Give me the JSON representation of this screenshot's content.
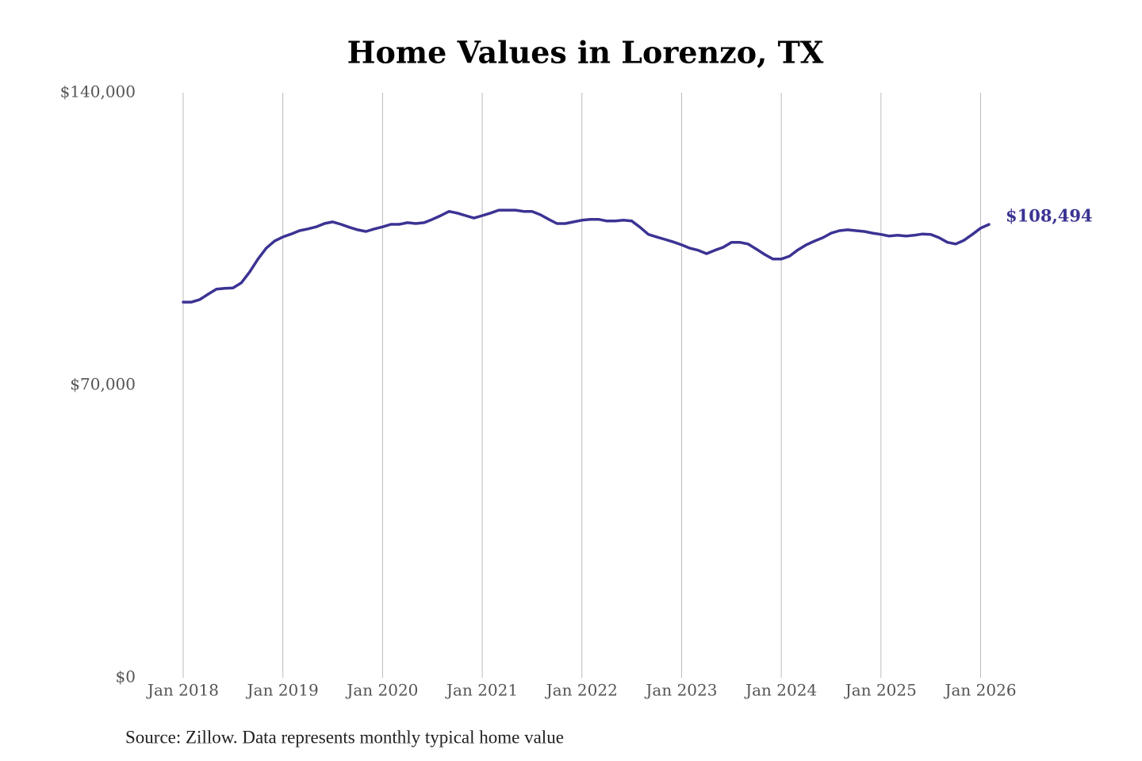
{
  "chart_data": {
    "type": "line",
    "title": "Home Values in Lorenzo, TX",
    "source": "Source: Zillow. Data represents monthly typical home value",
    "x": [
      "2018-01",
      "2018-02",
      "2018-03",
      "2018-04",
      "2018-05",
      "2018-06",
      "2018-07",
      "2018-08",
      "2018-09",
      "2018-10",
      "2018-11",
      "2018-12",
      "2019-01",
      "2019-02",
      "2019-03",
      "2019-04",
      "2019-05",
      "2019-06",
      "2019-07",
      "2019-08",
      "2019-09",
      "2019-10",
      "2019-11",
      "2019-12",
      "2020-01",
      "2020-02",
      "2020-03",
      "2020-04",
      "2020-05",
      "2020-06",
      "2020-07",
      "2020-08",
      "2020-09",
      "2020-10",
      "2020-11",
      "2020-12",
      "2021-01",
      "2021-02",
      "2021-03",
      "2021-04",
      "2021-05",
      "2021-06",
      "2021-07",
      "2021-08",
      "2021-09",
      "2021-10",
      "2021-11",
      "2021-12",
      "2022-01",
      "2022-02",
      "2022-03",
      "2022-04",
      "2022-05",
      "2022-06",
      "2022-07",
      "2022-08",
      "2022-09",
      "2022-10",
      "2022-11",
      "2022-12",
      "2023-01",
      "2023-02",
      "2023-03",
      "2023-04",
      "2023-05",
      "2023-06",
      "2023-07",
      "2023-08",
      "2023-09",
      "2023-10",
      "2023-11",
      "2023-12",
      "2024-01",
      "2024-02",
      "2024-03",
      "2024-04",
      "2024-05",
      "2024-06",
      "2024-07",
      "2024-08",
      "2024-09",
      "2024-10",
      "2024-11",
      "2024-12",
      "2025-01",
      "2025-02",
      "2025-03",
      "2025-04",
      "2025-05",
      "2025-06",
      "2025-07",
      "2025-08",
      "2025-09",
      "2025-10",
      "2025-11",
      "2025-12",
      "2026-01",
      "2026-02"
    ],
    "series": [
      {
        "name": "Home value",
        "color": "#3b3393",
        "values": [
          89900,
          89900,
          90500,
          91800,
          93000,
          93200,
          93300,
          94500,
          97100,
          100200,
          102800,
          104500,
          105500,
          106200,
          107000,
          107400,
          107900,
          108700,
          109100,
          108500,
          107800,
          107200,
          106800,
          107400,
          107900,
          108500,
          108500,
          108900,
          108700,
          108900,
          109700,
          110600,
          111600,
          111200,
          110600,
          110000,
          110600,
          111200,
          111900,
          111900,
          111900,
          111600,
          111600,
          110800,
          109700,
          108700,
          108700,
          109100,
          109500,
          109700,
          109700,
          109300,
          109300,
          109500,
          109300,
          107800,
          106100,
          105500,
          104900,
          104300,
          103600,
          102800,
          102300,
          101500,
          102300,
          103000,
          104200,
          104200,
          103800,
          102600,
          101300,
          100200,
          100200,
          100900,
          102400,
          103600,
          104500,
          105300,
          106400,
          107000,
          107200,
          107000,
          106800,
          106400,
          106100,
          105700,
          105900,
          105700,
          105900,
          106200,
          106100,
          105300,
          104200,
          103800,
          104700,
          106100,
          107600,
          108494
        ],
        "value_labels": [
          null,
          null,
          null,
          null,
          null,
          null,
          null,
          null,
          null,
          null,
          null,
          null,
          null,
          null,
          null,
          null,
          null,
          null,
          null,
          null,
          null,
          null,
          null,
          null,
          null,
          null,
          null,
          null,
          null,
          null,
          null,
          null,
          null,
          null,
          null,
          null,
          null,
          null,
          null,
          null,
          null,
          null,
          null,
          null,
          null,
          null,
          null,
          null,
          null,
          null,
          null,
          null,
          null,
          null,
          null,
          null,
          null,
          null,
          null,
          null,
          null,
          null,
          null,
          null,
          null,
          null,
          null,
          null,
          null,
          null,
          null,
          null,
          null,
          null,
          null,
          null,
          null,
          null,
          null,
          null,
          null,
          null,
          null,
          null,
          null,
          null,
          null,
          null,
          null,
          null,
          null,
          null,
          null,
          null,
          null,
          null,
          null,
          "$108,494"
        ]
      }
    ],
    "xlim": [
      "2018-01",
      "2026-02"
    ],
    "xticks": [
      {
        "value": "2018-01",
        "label": "Jan 2018"
      },
      {
        "value": "2019-01",
        "label": "Jan 2019"
      },
      {
        "value": "2020-01",
        "label": "Jan 2020"
      },
      {
        "value": "2021-01",
        "label": "Jan 2021"
      },
      {
        "value": "2022-01",
        "label": "Jan 2022"
      },
      {
        "value": "2023-01",
        "label": "Jan 2023"
      },
      {
        "value": "2024-01",
        "label": "Jan 2024"
      },
      {
        "value": "2025-01",
        "label": "Jan 2025"
      },
      {
        "value": "2026-01",
        "label": "Jan 2026"
      }
    ],
    "ylim": [
      0,
      140000
    ],
    "yticks": [
      {
        "value": 0,
        "label": "$0"
      },
      {
        "value": 70000,
        "label": "$70,000"
      },
      {
        "value": 140000,
        "label": "$140,000"
      }
    ],
    "grid": "x"
  }
}
